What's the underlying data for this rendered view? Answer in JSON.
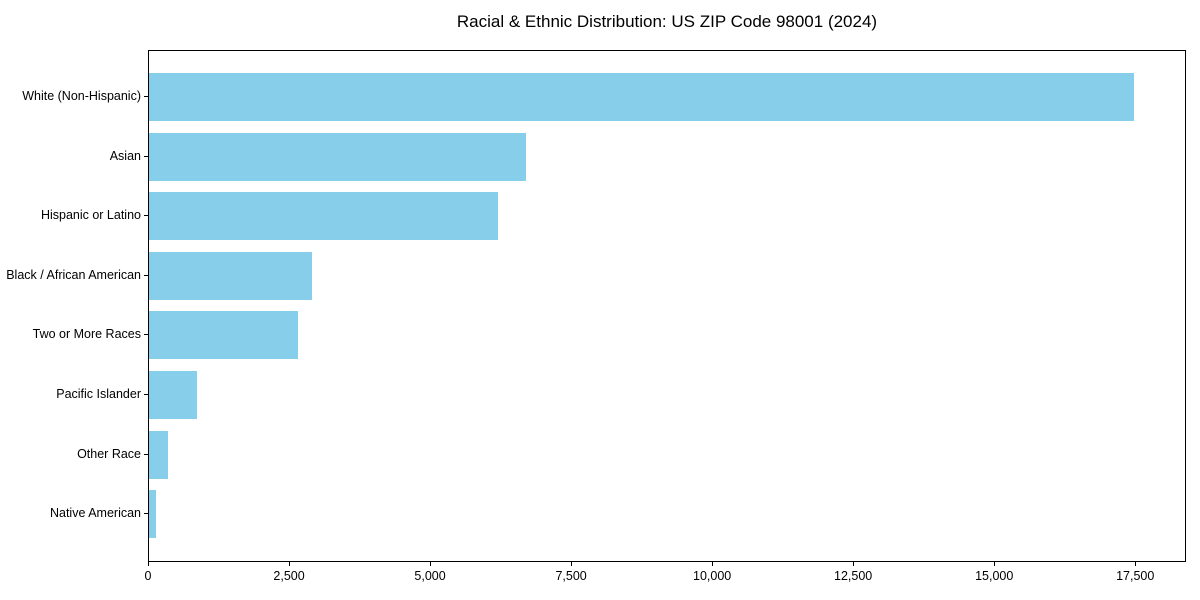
{
  "chart_data": {
    "type": "bar",
    "orientation": "horizontal",
    "title": "Racial & Ethnic Distribution: US ZIP Code 98001 (2024)",
    "categories": [
      "White (Non-Hispanic)",
      "Asian",
      "Hispanic or Latino",
      "Black / African American",
      "Two or More Races",
      "Pacific Islander",
      "Other Race",
      "Native American"
    ],
    "values": [
      17500,
      6700,
      6190,
      2890,
      2640,
      850,
      340,
      125
    ],
    "xlabel": "",
    "ylabel": "",
    "xlim": [
      0,
      18400
    ],
    "xticks": [
      0,
      2500,
      5000,
      7500,
      10000,
      12500,
      15000,
      17500
    ],
    "xtick_labels": [
      "0",
      "2,500",
      "5,000",
      "7,500",
      "10,000",
      "12,500",
      "15,000",
      "17,500"
    ],
    "bar_color": "#87CEEB",
    "axis_color": "#000000",
    "background_color": "#FFFFFF",
    "grid": false,
    "legend": null
  }
}
